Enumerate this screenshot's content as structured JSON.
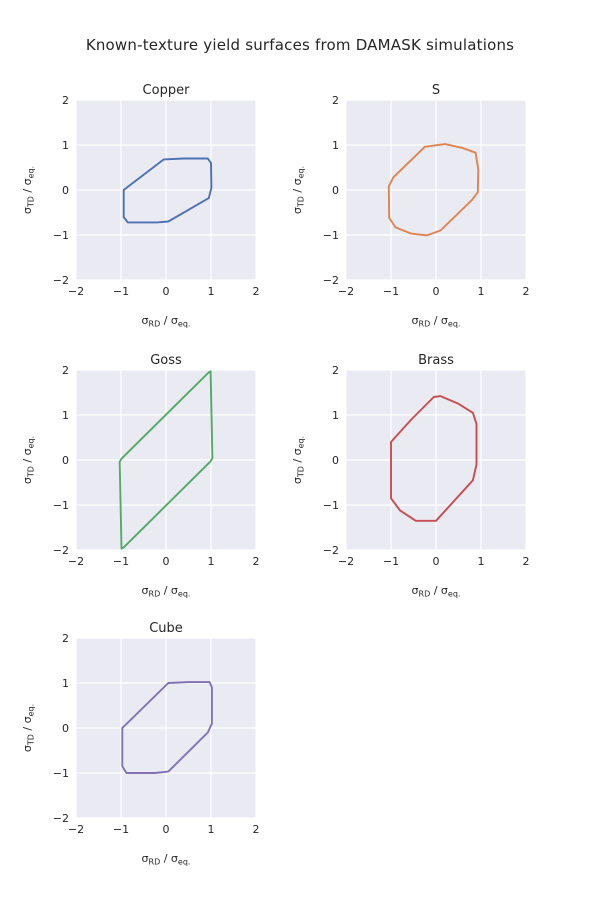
{
  "figure": {
    "title": "Known-texture yield surfaces from DAMASK simulations"
  },
  "chart_data": {
    "type": "line",
    "description": "Five closed yield-surface outlines in normalized stress space, one subplot per texture",
    "xlabel": "σ_RD / σ_eq.",
    "ylabel": "σ_TD / σ_eq.",
    "xlim": [
      -2,
      2
    ],
    "ylim": [
      -2,
      2
    ],
    "xticks": [
      -2,
      -1,
      0,
      1,
      2
    ],
    "yticks": [
      -2,
      -1,
      0,
      1,
      2
    ],
    "grid": true,
    "plot_bg": "#EAEAF2",
    "grid_color": "#FFFFFF",
    "text_color": "#262626",
    "subplots": [
      {
        "title": "Copper",
        "color": "#4C72B0",
        "closed": true,
        "points": [
          [
            -0.94,
            0.0
          ],
          [
            -0.05,
            0.68
          ],
          [
            0.4,
            0.7
          ],
          [
            0.93,
            0.7
          ],
          [
            1.0,
            0.6
          ],
          [
            1.01,
            0.05
          ],
          [
            0.95,
            -0.18
          ],
          [
            0.05,
            -0.7
          ],
          [
            -0.2,
            -0.72
          ],
          [
            -0.85,
            -0.72
          ],
          [
            -0.94,
            -0.6
          ]
        ]
      },
      {
        "title": "S",
        "color": "#DD8452",
        "closed": true,
        "points": [
          [
            0.2,
            1.02
          ],
          [
            0.6,
            0.93
          ],
          [
            0.88,
            0.83
          ],
          [
            0.94,
            0.45
          ],
          [
            0.93,
            -0.05
          ],
          [
            0.8,
            -0.22
          ],
          [
            0.1,
            -0.9
          ],
          [
            -0.2,
            -1.01
          ],
          [
            -0.55,
            -0.97
          ],
          [
            -0.9,
            -0.83
          ],
          [
            -1.04,
            -0.62
          ],
          [
            -1.05,
            0.08
          ],
          [
            -0.95,
            0.28
          ],
          [
            -0.25,
            0.96
          ]
        ]
      },
      {
        "title": "Goss",
        "color": "#55A868",
        "closed": true,
        "points": [
          [
            -1.03,
            -0.04
          ],
          [
            -0.99,
            0.03
          ],
          [
            0.95,
            1.95
          ],
          [
            0.99,
            1.97
          ],
          [
            1.03,
            0.04
          ],
          [
            0.99,
            -0.03
          ],
          [
            -0.95,
            -1.95
          ],
          [
            -0.99,
            -1.97
          ]
        ]
      },
      {
        "title": "Brass",
        "color": "#C44E52",
        "closed": true,
        "points": [
          [
            0.1,
            1.42
          ],
          [
            0.5,
            1.25
          ],
          [
            0.82,
            1.05
          ],
          [
            0.9,
            0.8
          ],
          [
            0.9,
            -0.1
          ],
          [
            0.82,
            -0.45
          ],
          [
            0.0,
            -1.35
          ],
          [
            -0.45,
            -1.35
          ],
          [
            -0.8,
            -1.12
          ],
          [
            -1.0,
            -0.85
          ],
          [
            -1.0,
            0.4
          ],
          [
            -0.55,
            0.9
          ],
          [
            -0.05,
            1.4
          ]
        ]
      },
      {
        "title": "Cube",
        "color": "#8172B3",
        "closed": true,
        "points": [
          [
            -0.97,
            0.0
          ],
          [
            0.05,
            1.0
          ],
          [
            0.5,
            1.02
          ],
          [
            0.97,
            1.02
          ],
          [
            1.02,
            0.9
          ],
          [
            1.02,
            0.1
          ],
          [
            0.93,
            -0.1
          ],
          [
            0.05,
            -0.97
          ],
          [
            -0.25,
            -1.0
          ],
          [
            -0.88,
            -1.0
          ],
          [
            -0.97,
            -0.85
          ]
        ]
      }
    ]
  }
}
